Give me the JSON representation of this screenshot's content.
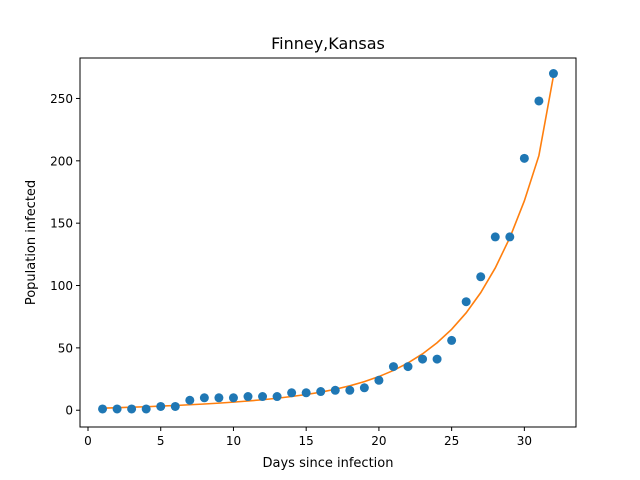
{
  "chart_data": {
    "type": "scatter",
    "title": "Finney,Kansas",
    "xlabel": "Days since infection",
    "ylabel": "Population infected",
    "xlim": [
      -0.55,
      33.55
    ],
    "ylim": [
      -13.45,
      282.45
    ],
    "xticks": [
      0,
      5,
      10,
      15,
      20,
      25,
      30
    ],
    "yticks": [
      0,
      50,
      100,
      150,
      200,
      250
    ],
    "grid": false,
    "series": [
      {
        "type": "scatter",
        "color": "#1f77b4",
        "x": [
          1,
          2,
          3,
          4,
          5,
          6,
          7,
          8,
          9,
          10,
          11,
          12,
          13,
          14,
          15,
          16,
          17,
          18,
          19,
          20,
          21,
          22,
          23,
          24,
          25,
          26,
          27,
          28,
          29,
          30,
          31,
          32
        ],
        "y": [
          1,
          1,
          1,
          1,
          3,
          3,
          8,
          10,
          10,
          10,
          11,
          11,
          11,
          14,
          14,
          15,
          16,
          16,
          18,
          24,
          35,
          35,
          41,
          41,
          56,
          87,
          107,
          139,
          139,
          202,
          248,
          270
        ]
      },
      {
        "type": "line",
        "color": "#ff7f0e",
        "x": [
          1,
          2,
          3,
          4,
          5,
          6,
          7,
          8,
          9,
          10,
          11,
          12,
          13,
          14,
          15,
          16,
          17,
          18,
          19,
          20,
          21,
          22,
          23,
          24,
          25,
          26,
          27,
          28,
          29,
          30,
          31,
          32
        ],
        "y": [
          1.6,
          2.0,
          2.4,
          2.8,
          3.3,
          3.8,
          4.4,
          5.0,
          5.7,
          6.5,
          7.4,
          8.4,
          9.6,
          11.0,
          12.6,
          14.5,
          16.8,
          19.6,
          22.9,
          27.0,
          31.9,
          37.9,
          45.2,
          54.1,
          64.9,
          78.1,
          94.3,
          114.1,
          138.3,
          167.9,
          204.2,
          268.0
        ]
      }
    ]
  }
}
